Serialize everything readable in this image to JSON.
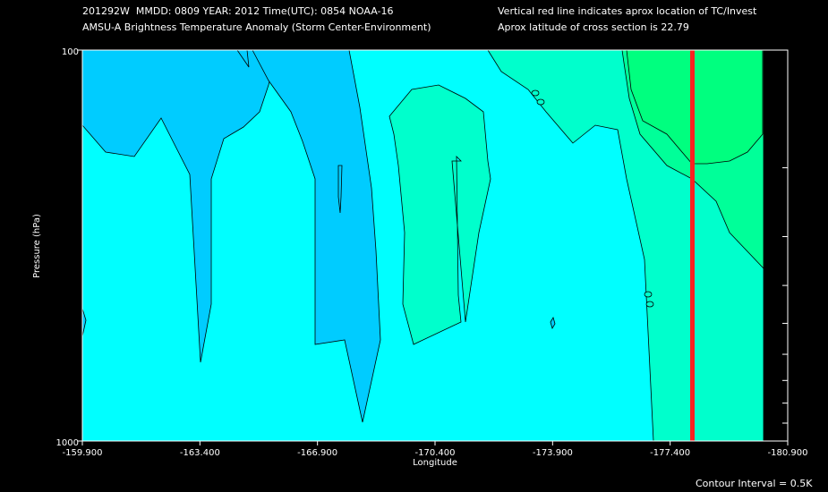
{
  "header": {
    "line1_left": "201292W  MMDD: 0809 YEAR: 2012 Time(UTC): 0854 NOAA-16",
    "line2_left": "AMSU-A Brightness Temperature Anomaly (Storm Center-Environment)",
    "line1_right": "Vertical red line indicates aprox location of TC/Invest",
    "line2_right": "Aprox latitude of cross section is 22.79"
  },
  "footer": {
    "contour_interval": "Contour Interval = 0.5K"
  },
  "colors": {
    "band_minus1": "#00ccff",
    "band_0": "#00ffff",
    "band_plus05": "#00ffcc",
    "band_plus1": "#00ff99",
    "band_plus15": "#00ff7f",
    "storm_line": "#ff2020",
    "background": "#000000"
  },
  "chart_data": {
    "type": "heatmap",
    "title": "AMSU-A Brightness Temperature Anomaly (Storm Center-Environment)",
    "xlabel": "Longitude",
    "ylabel": "Pressure (hPa)",
    "x_ticks": [
      "-159.900",
      "-163.400",
      "-166.900",
      "-170.400",
      "-173.900",
      "-177.400",
      "-180.900"
    ],
    "x_range": [
      -159.9,
      -180.9
    ],
    "y_ticks": [
      "100",
      "1000"
    ],
    "y_range": [
      100,
      1000
    ],
    "y_scale": "log",
    "storm_longitude": -177.4,
    "contour_interval_K": 0.5
  }
}
